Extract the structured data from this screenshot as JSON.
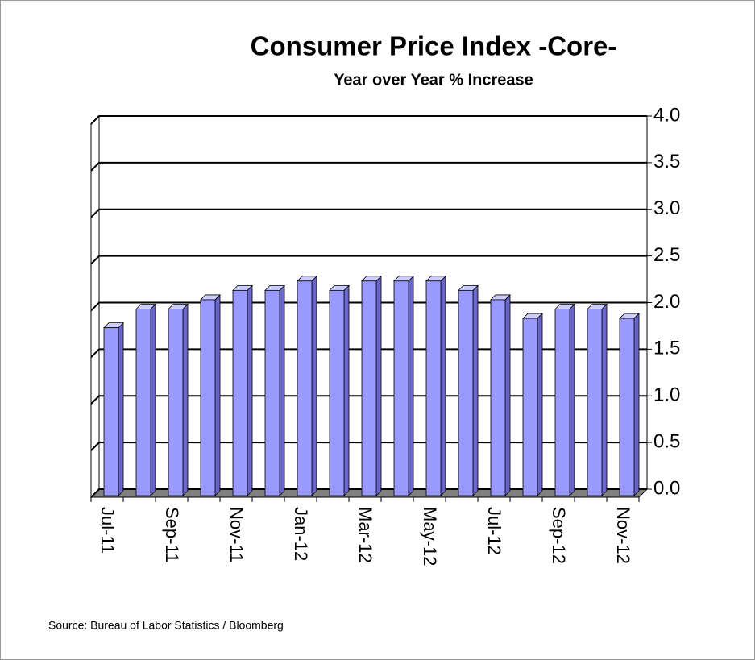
{
  "chart_data": {
    "type": "bar3d",
    "title": "Consumer Price Index -Core-",
    "subtitle": "Year over Year % Increase",
    "source": "Source: Bureau of Labor Statistics / Bloomberg",
    "categories": [
      "Jul-11",
      null,
      "Sep-11",
      null,
      "Nov-11",
      null,
      "Jan-12",
      null,
      "Mar-12",
      null,
      "May-12",
      null,
      "Jul-12",
      null,
      "Sep-12",
      null,
      "Nov-12"
    ],
    "values": [
      1.8,
      2.0,
      2.0,
      2.1,
      2.2,
      2.2,
      2.3,
      2.2,
      2.3,
      2.3,
      2.3,
      2.2,
      2.1,
      1.9,
      2.0,
      2.0,
      1.9
    ],
    "color": "#9999ff",
    "ylim": [
      0,
      4
    ],
    "yticks": [
      {
        "value": 0,
        "label": "0.0"
      },
      0.5,
      {
        "value": 1,
        "label": "1.0"
      },
      1.5,
      {
        "value": 2,
        "label": "2.0"
      },
      2.5,
      {
        "value": 3,
        "label": "3.0"
      },
      3.5,
      {
        "value": 4,
        "label": "4.0"
      }
    ],
    "grid": true,
    "y_axis_side": "right"
  }
}
